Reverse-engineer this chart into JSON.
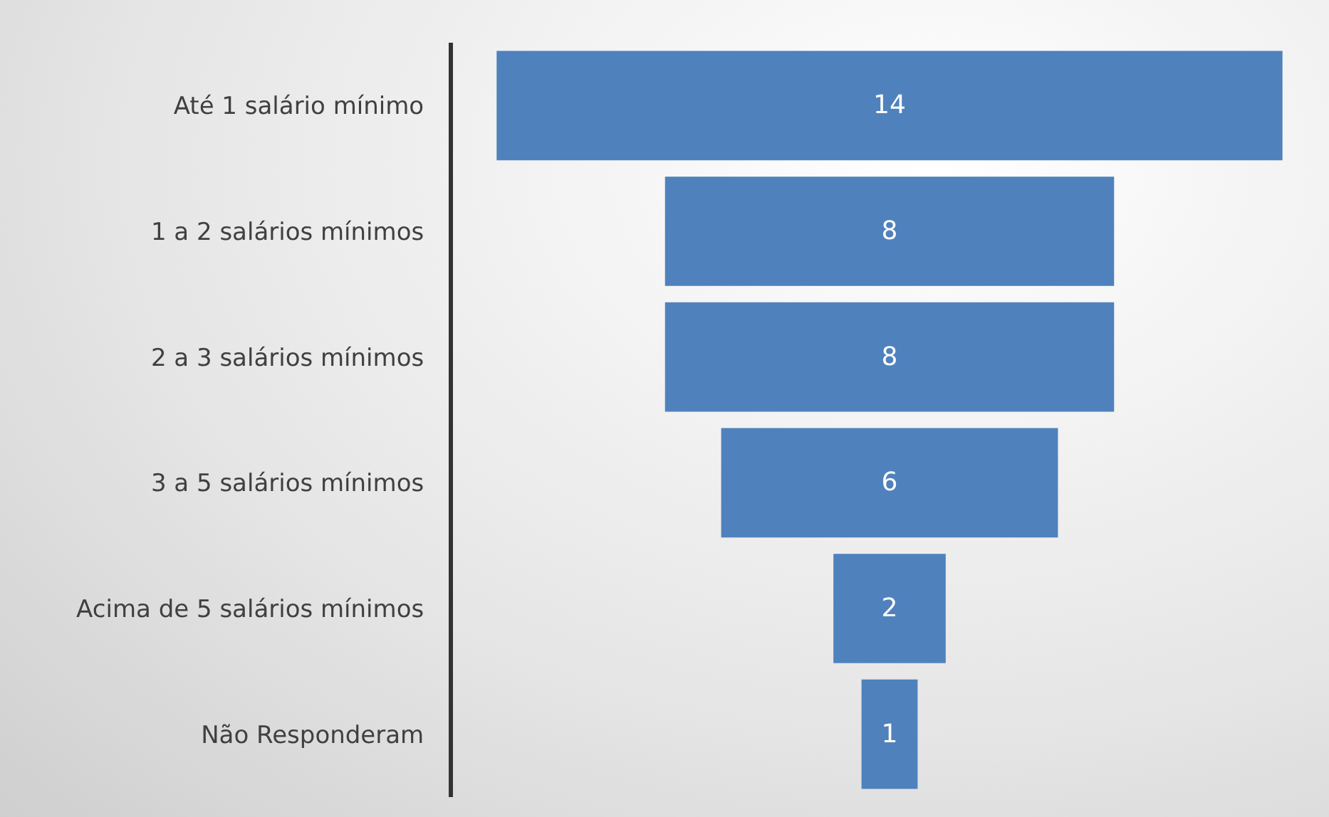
{
  "chart_data": {
    "type": "other",
    "categories": [
      "Até 1 salário mínimo",
      "1 a 2 salários mínimos",
      "2 a 3 salários mínimos",
      "3 a 5 salários mínimos",
      "Acima de 5 salários mínimos",
      "Não Responderam"
    ],
    "values": [
      14,
      8,
      8,
      6,
      2,
      1
    ],
    "color": "#4f81bd",
    "data_labels": true
  }
}
